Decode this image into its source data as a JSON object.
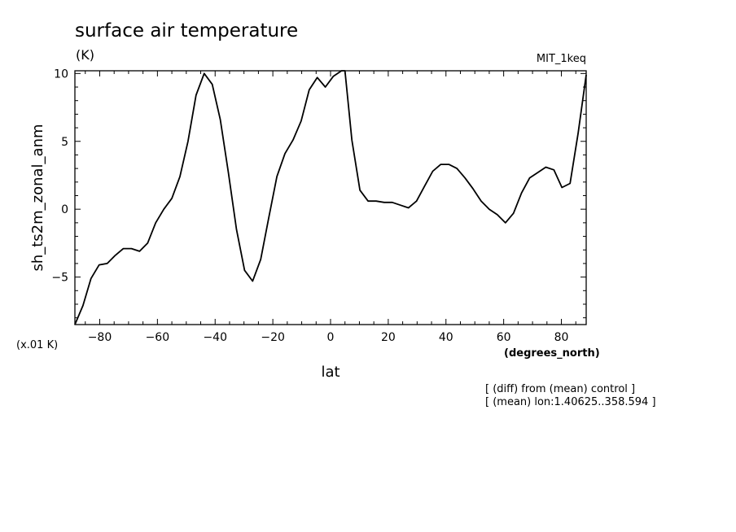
{
  "title": "surface air temperature",
  "units": "(K)",
  "model": "MIT_1keq",
  "scale_note": "(x.01 K)",
  "x_units": "(degrees_north)",
  "notes": [
    "[ (diff) from (mean) control ]",
    "[ (mean) lon:1.40625..358.594 ]"
  ],
  "chart_data": {
    "type": "line",
    "title": "surface air temperature",
    "xlabel": "lat",
    "ylabel": "sh_ts2m_zonal_anm",
    "xlim": [
      -88.6,
      88.6
    ],
    "ylim": [
      -8.5,
      10.2
    ],
    "xticks": [
      -80,
      -60,
      -40,
      -20,
      0,
      20,
      40,
      60,
      80
    ],
    "yticks": [
      -5,
      0,
      5,
      10
    ],
    "grid": false,
    "series": [
      {
        "x": [
          -88.6,
          -85.8,
          -83.0,
          -80.2,
          -77.4,
          -74.6,
          -71.8,
          -69.0,
          -66.2,
          -63.4,
          -60.6,
          -57.8,
          -55.0,
          -52.2,
          -49.4,
          -46.6,
          -43.8,
          -41.0,
          -38.2,
          -35.4,
          -32.6,
          -29.8,
          -27.0,
          -24.2,
          -21.4,
          -18.6,
          -15.8,
          -13.0,
          -10.2,
          -7.4,
          -4.6,
          -1.8,
          1.0,
          3.8,
          5.0,
          7.4,
          10.2,
          13.0,
          15.8,
          18.6,
          21.4,
          24.2,
          27.0,
          29.8,
          32.6,
          35.4,
          38.2,
          41.0,
          43.8,
          46.6,
          49.4,
          52.2,
          55.0,
          57.8,
          60.6,
          63.4,
          66.2,
          69.0,
          71.8,
          74.6,
          77.4,
          80.2,
          83.0,
          85.8,
          88.6
        ],
        "values": [
          -8.5,
          -7.1,
          -5.1,
          -4.1,
          -4.0,
          -3.4,
          -2.9,
          -2.9,
          -3.1,
          -2.5,
          -1.0,
          0.0,
          0.8,
          2.4,
          5.0,
          8.4,
          10.0,
          9.2,
          6.6,
          2.7,
          -1.5,
          -4.5,
          -5.3,
          -3.7,
          -0.6,
          2.4,
          4.1,
          5.1,
          6.5,
          8.8,
          9.7,
          9.0,
          9.8,
          10.2,
          10.2,
          5.1,
          1.4,
          0.6,
          0.6,
          0.5,
          0.5,
          0.3,
          0.1,
          0.6,
          1.7,
          2.8,
          3.3,
          3.3,
          3.0,
          2.3,
          1.5,
          0.6,
          0.0,
          -0.4,
          -1.0,
          -0.3,
          1.2,
          2.3,
          2.7,
          3.1,
          2.9,
          1.6,
          1.9,
          5.6,
          9.9
        ]
      }
    ]
  }
}
